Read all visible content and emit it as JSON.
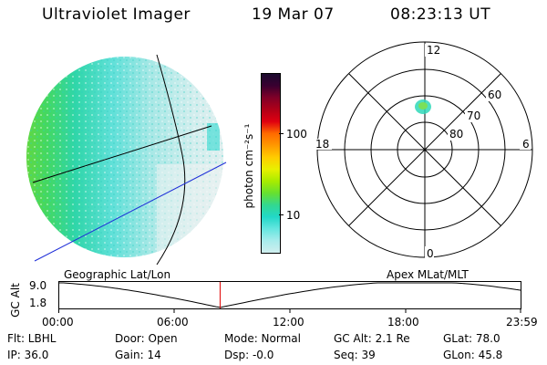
{
  "header": {
    "instrument": "Ultraviolet Imager",
    "date": "19 Mar 07",
    "time": "08:23:13 UT"
  },
  "colorbar": {
    "unit_label": "photon cm⁻²s⁻¹",
    "ticks": [
      "100",
      "10"
    ],
    "stops": [
      "#1a0a2e",
      "#3a0030",
      "#800028",
      "#b00018",
      "#e00010",
      "#ff6a00",
      "#ff9900",
      "#ffcc00",
      "#e8f000",
      "#a8ec00",
      "#66e030",
      "#33d890",
      "#22d8c8",
      "#66e6e0",
      "#a8ecec",
      "#d0eeee"
    ]
  },
  "polar_plot": {
    "labels_top": "12",
    "labels_bottom": "0",
    "labels_left": "18",
    "labels_right": "6",
    "lat_labels": [
      "60",
      "70",
      "80"
    ]
  },
  "timeline": {
    "left_label": "Geographic Lat/Lon",
    "right_label": "Apex  MLat/MLT",
    "axis_label": "GC Alt",
    "y_top": "9.0",
    "y_bottom": "1.8",
    "x_ticks": [
      "00:00",
      "06:00",
      "12:00",
      "18:00",
      "23:59"
    ],
    "current_fraction": 0.349
  },
  "info": {
    "flt": "Flt: LBHL",
    "ip": "IP: 36.0",
    "door": "Door: Open",
    "gain": "Gain: 14",
    "mode": "Mode: Normal",
    "dsp": "Dsp:   -0.0",
    "gcalt": "GC Alt: 2.1 Re",
    "seq": "Seq: 39",
    "glat": "GLat:  78.0",
    "glon": "GLon:  45.8"
  },
  "colors": {
    "marker": "#e00000",
    "blue_line": "#1f2fd8"
  }
}
